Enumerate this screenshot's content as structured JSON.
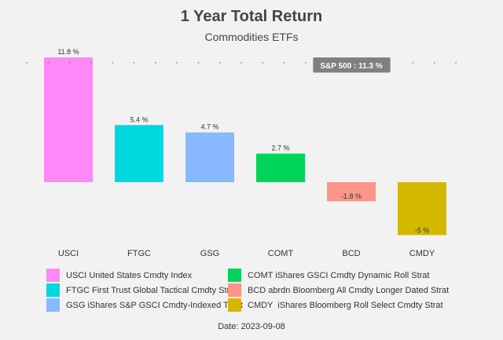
{
  "chart_data": {
    "type": "bar",
    "title": "1 Year Total Return",
    "subtitle": "Commodities ETFs",
    "categories": [
      "USCI",
      "FTGC",
      "GSG",
      "COMT",
      "BCD",
      "CMDY"
    ],
    "values": [
      11.8,
      5.4,
      4.7,
      2.7,
      -1.8,
      -5
    ],
    "value_labels": [
      "11.8 %",
      "5.4 %",
      "4.7 %",
      "2.7 %",
      "-1.8 %",
      "-5 %"
    ],
    "colors": [
      "#ff88f8",
      "#00d8e0",
      "#88b8ff",
      "#00d45a",
      "#ff9488",
      "#d4b800"
    ],
    "reference": {
      "label": "S&P 500 : 11.3 %",
      "value": 11.3
    },
    "legend": [
      "USCI United States Cmdty Index",
      "FTGC First Trust Global Tactical Cmdty Strat",
      "GSG iShares S&P GSCI Cmdty-Indexed Trust",
      "COMT iShares GSCI Cmdty Dynamic Roll Strat",
      "BCD abrdn Bloomberg All Cmdty Longer Dated Strat",
      "CMDY  iShares Bloomberg Roll Select Cmdty Strat"
    ],
    "legend_placement": "bottom",
    "grid": false
  },
  "footer": {
    "date": "Date: 2023-09-08"
  }
}
